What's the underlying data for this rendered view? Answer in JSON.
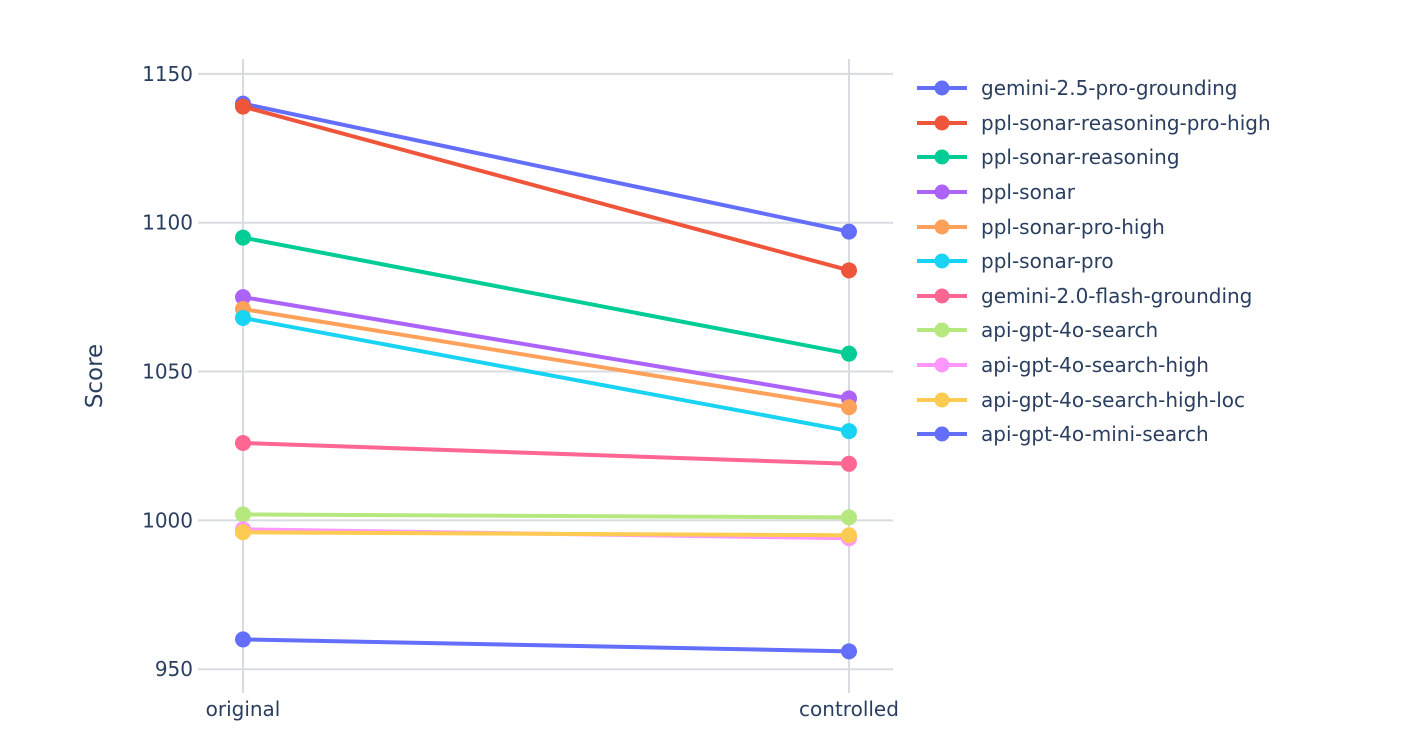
{
  "colors": {
    "text": "#2a3f5f",
    "grid": "#d8dbdf",
    "background": "#ffffff"
  },
  "chart_data": {
    "type": "line",
    "title": "",
    "xlabel": "",
    "ylabel": "Score",
    "categories": [
      "original",
      "controlled"
    ],
    "yticks": [
      950,
      1000,
      1050,
      1100,
      1150
    ],
    "ylim": [
      942,
      1155
    ],
    "grid": true,
    "legend_position": "right",
    "series": [
      {
        "name": "gemini-2.5-pro-grounding",
        "color": "#636EFA",
        "values": [
          1140,
          1097
        ]
      },
      {
        "name": "ppl-sonar-reasoning-pro-high",
        "color": "#EF553B",
        "values": [
          1139,
          1084
        ]
      },
      {
        "name": "ppl-sonar-reasoning",
        "color": "#00CC96",
        "values": [
          1095,
          1056
        ]
      },
      {
        "name": "ppl-sonar",
        "color": "#AB63FA",
        "values": [
          1075,
          1041
        ]
      },
      {
        "name": "ppl-sonar-pro-high",
        "color": "#FFA15A",
        "values": [
          1071,
          1038
        ]
      },
      {
        "name": "ppl-sonar-pro",
        "color": "#19D3F3",
        "values": [
          1068,
          1030
        ]
      },
      {
        "name": "gemini-2.0-flash-grounding",
        "color": "#FF6692",
        "values": [
          1026,
          1019
        ]
      },
      {
        "name": "api-gpt-4o-search",
        "color": "#B6E880",
        "values": [
          1002,
          1001
        ]
      },
      {
        "name": "api-gpt-4o-search-high",
        "color": "#FF97FF",
        "values": [
          997,
          994
        ]
      },
      {
        "name": "api-gpt-4o-search-high-loc",
        "color": "#FECB52",
        "values": [
          996,
          995
        ]
      },
      {
        "name": "api-gpt-4o-mini-search",
        "color": "#636EFA",
        "values": [
          960,
          956
        ]
      }
    ]
  }
}
